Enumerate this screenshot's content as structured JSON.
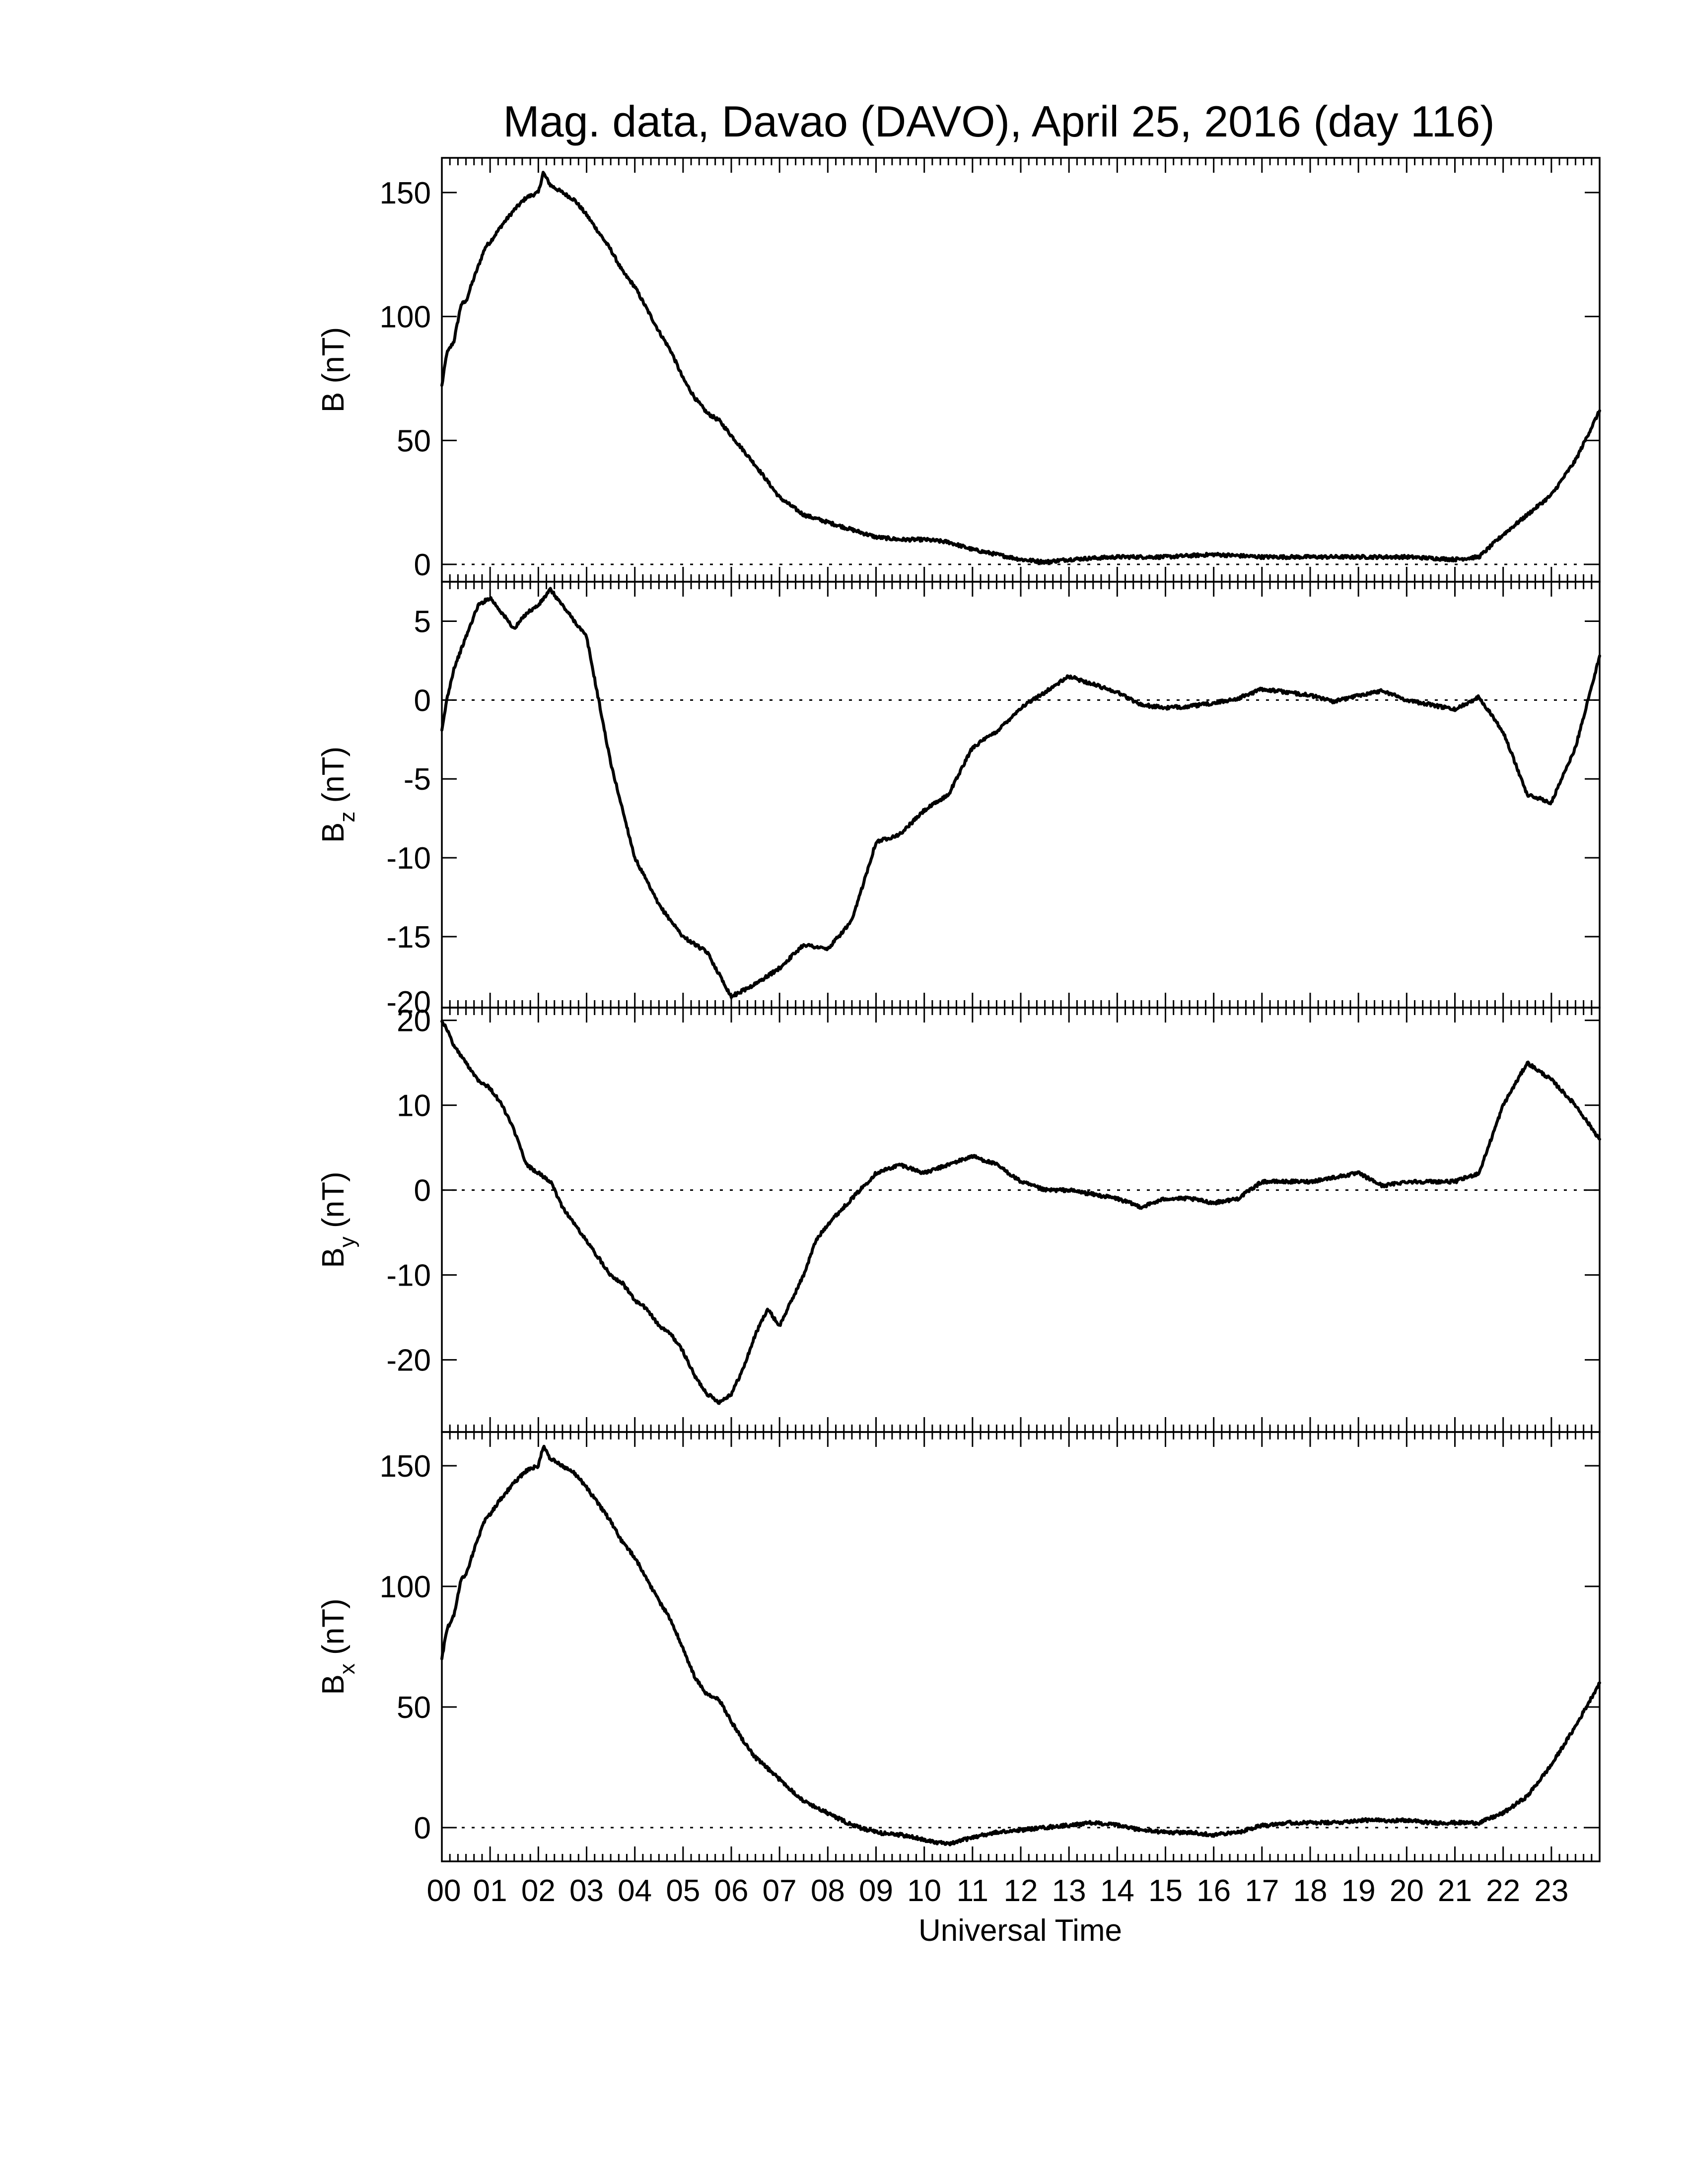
{
  "chart_data": {
    "title": "Mag. data, Davao (DAVO), April 25, 2016 (day 116)",
    "xlabel": "Universal Time",
    "x_ticks": [
      "00",
      "01",
      "02",
      "03",
      "04",
      "05",
      "06",
      "07",
      "08",
      "09",
      "10",
      "11",
      "12",
      "13",
      "14",
      "15",
      "16",
      "17",
      "18",
      "19",
      "20",
      "21",
      "22",
      "23"
    ],
    "xlim": [
      0,
      24
    ],
    "panels": [
      {
        "id": "B",
        "type": "line",
        "ylabel_main": "B",
        "ylabel_sub": "",
        "ylabel_unit": " (nT)",
        "ylim": [
          -7,
          164
        ],
        "yticks": [
          0,
          50,
          100,
          150
        ],
        "zero_line": true,
        "x": [
          0,
          0.1,
          0.25,
          0.4,
          0.5,
          0.6,
          0.75,
          0.9,
          1.0,
          1.25,
          1.5,
          1.75,
          2.0,
          2.1,
          2.25,
          2.5,
          2.75,
          3.0,
          3.25,
          3.5,
          3.75,
          4.0,
          4.25,
          4.5,
          4.75,
          5.0,
          5.25,
          5.5,
          5.75,
          6.0,
          6.25,
          6.5,
          7.0,
          7.5,
          8.0,
          8.5,
          9.0,
          9.5,
          10.0,
          10.5,
          11.0,
          11.5,
          12.0,
          12.5,
          13.0,
          14.0,
          15.0,
          16.0,
          17.0,
          18.0,
          19.0,
          20.0,
          21.0,
          21.5,
          22.0,
          22.5,
          23.0,
          23.5,
          24.0
        ],
        "values": [
          72,
          85,
          90,
          105,
          106,
          112,
          120,
          128,
          130,
          137,
          143,
          148,
          150,
          158,
          153,
          150,
          147,
          141,
          134,
          127,
          118,
          112,
          103,
          94,
          86,
          75,
          67,
          61,
          58,
          52,
          46,
          40,
          27,
          20,
          17,
          14,
          11,
          10,
          10,
          9,
          6,
          4,
          2,
          1,
          2,
          3,
          3,
          4,
          3,
          3,
          3,
          3,
          2,
          3,
          12,
          20,
          28,
          42,
          62
        ]
      },
      {
        "id": "Bz",
        "type": "line",
        "ylabel_main": "B",
        "ylabel_sub": "z",
        "ylabel_unit": " (nT)",
        "ylim": [
          -19.5,
          7.5
        ],
        "yticks": [
          -15,
          -10,
          -5,
          0,
          5
        ],
        "ytick_labels": [
          "-15",
          "-10",
          "-5",
          "0",
          "5"
        ],
        "bottom_label": "-20",
        "zero_line": true,
        "x": [
          0,
          0.1,
          0.25,
          0.5,
          0.75,
          1.0,
          1.25,
          1.5,
          1.75,
          2.0,
          2.25,
          2.5,
          2.75,
          3.0,
          3.25,
          3.5,
          3.75,
          4.0,
          4.5,
          5.0,
          5.5,
          6.0,
          6.5,
          7.0,
          7.5,
          8.0,
          8.5,
          9.0,
          9.5,
          10.0,
          10.5,
          11.0,
          11.5,
          12.0,
          12.5,
          13.0,
          13.5,
          14.0,
          14.5,
          15.0,
          15.5,
          16.0,
          16.5,
          17.0,
          17.5,
          18.0,
          18.5,
          19.0,
          19.5,
          20.0,
          20.5,
          21.0,
          21.5,
          22.0,
          22.5,
          23.0,
          23.5,
          24.0
        ],
        "values": [
          -2,
          0,
          2,
          4,
          6,
          6.5,
          5.5,
          4.5,
          5.5,
          6,
          7,
          6,
          5,
          4,
          0,
          -4,
          -7,
          -10,
          -13,
          -15,
          -16,
          -18.8,
          -18,
          -17,
          -15.5,
          -15.8,
          -14,
          -9,
          -8.5,
          -7,
          -6,
          -3,
          -2,
          -0.5,
          0.5,
          1.5,
          1,
          0.5,
          -0.3,
          -0.5,
          -0.4,
          -0.2,
          0.1,
          0.7,
          0.5,
          0.3,
          -0.1,
          0.3,
          0.6,
          0,
          -0.3,
          -0.6,
          0.2,
          -2,
          -6,
          -6.5,
          -3,
          2.8
        ]
      },
      {
        "id": "By",
        "type": "line",
        "ylabel_main": "B",
        "ylabel_sub": "y",
        "ylabel_unit": " (nT)",
        "ylim": [
          -28.5,
          21.5
        ],
        "yticks": [
          -20,
          -10,
          0,
          10,
          20
        ],
        "zero_line": true,
        "x": [
          0,
          0.1,
          0.25,
          0.5,
          0.75,
          1.0,
          1.25,
          1.5,
          1.75,
          2.0,
          2.25,
          2.5,
          2.75,
          3.0,
          3.25,
          3.5,
          3.75,
          4.0,
          4.25,
          4.5,
          4.75,
          5.0,
          5.25,
          5.5,
          5.75,
          6.0,
          6.25,
          6.5,
          6.75,
          7.0,
          7.25,
          7.5,
          7.75,
          8.0,
          8.5,
          9.0,
          9.5,
          10.0,
          10.5,
          11.0,
          11.5,
          12.0,
          12.5,
          13.0,
          13.5,
          14.0,
          14.5,
          15.0,
          15.5,
          16.0,
          16.5,
          17.0,
          17.5,
          18.0,
          18.5,
          19.0,
          19.5,
          20.0,
          20.5,
          21.0,
          21.5,
          22.0,
          22.5,
          23.0,
          23.5,
          24.0
        ],
        "values": [
          20,
          19,
          17,
          15,
          13,
          12,
          10,
          7,
          3,
          2,
          1,
          -2,
          -4,
          -6,
          -8,
          -10,
          -11,
          -13,
          -14,
          -16,
          -17,
          -19,
          -22,
          -24,
          -25,
          -24,
          -21,
          -17,
          -14,
          -16,
          -13,
          -10,
          -6,
          -4,
          -1,
          2,
          3,
          2,
          3,
          4,
          3,
          1,
          0,
          0,
          -0.5,
          -1,
          -2,
          -1,
          -1,
          -1.5,
          -1,
          1,
          1,
          1,
          1.5,
          2,
          0.5,
          1,
          1,
          1,
          2,
          10,
          15,
          13,
          10,
          6
        ]
      },
      {
        "id": "Bx",
        "type": "line",
        "ylabel_main": "B",
        "ylabel_sub": "x",
        "ylabel_unit": " (nT)",
        "ylim": [
          -14,
          164
        ],
        "yticks": [
          0,
          50,
          100,
          150
        ],
        "zero_line": true,
        "x": [
          0,
          0.1,
          0.25,
          0.4,
          0.5,
          0.6,
          0.75,
          0.9,
          1.0,
          1.25,
          1.5,
          1.75,
          2.0,
          2.1,
          2.25,
          2.5,
          2.75,
          3.0,
          3.25,
          3.5,
          3.75,
          4.0,
          4.25,
          4.5,
          4.75,
          5.0,
          5.25,
          5.5,
          5.75,
          6.0,
          6.25,
          6.5,
          7.0,
          7.5,
          8.0,
          8.5,
          9.0,
          9.5,
          10.0,
          10.5,
          11.0,
          11.5,
          12.0,
          12.5,
          13.0,
          13.5,
          14.0,
          14.5,
          15.0,
          15.5,
          16.0,
          16.5,
          17.0,
          17.5,
          18.0,
          18.5,
          19.0,
          19.5,
          20.0,
          20.5,
          21.0,
          21.5,
          22.0,
          22.5,
          23.0,
          23.5,
          24.0
        ],
        "values": [
          70,
          82,
          88,
          103,
          105,
          111,
          120,
          128,
          130,
          137,
          143,
          148,
          150,
          158,
          153,
          150,
          147,
          141,
          134,
          127,
          118,
          112,
          103,
          94,
          86,
          74,
          62,
          55,
          53,
          44,
          36,
          29,
          20,
          11,
          6,
          1,
          -2,
          -3,
          -5,
          -7,
          -4,
          -2,
          -1,
          0,
          1,
          2,
          1,
          -1,
          -2,
          -2,
          -3,
          -2,
          1,
          2,
          2,
          2,
          3,
          3,
          3,
          2,
          2,
          2,
          6,
          13,
          26,
          42,
          60
        ]
      }
    ]
  }
}
